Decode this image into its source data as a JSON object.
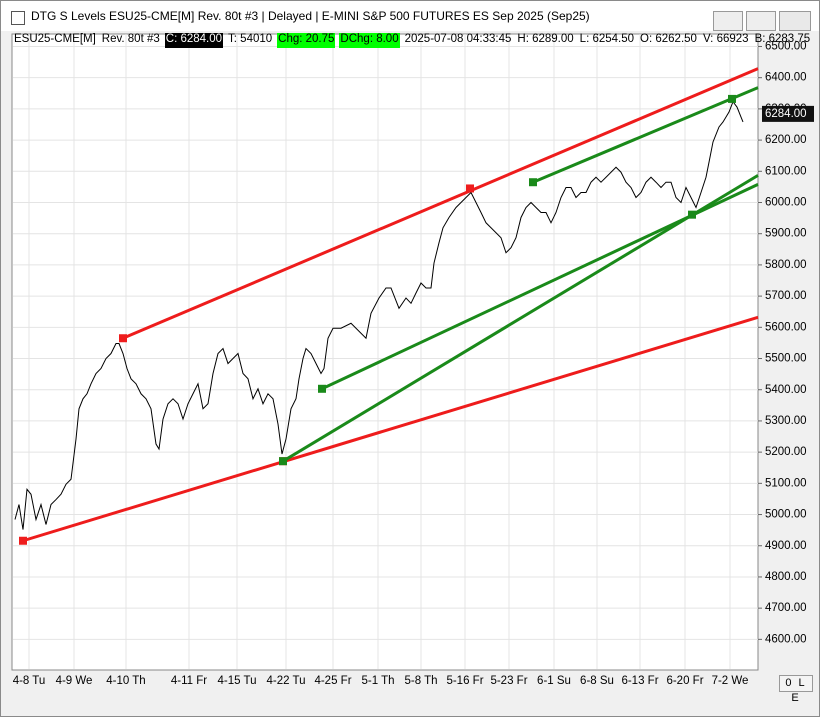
{
  "window_title": "DTG S Levels ESU25-CME[M]  Rev. 80t #3 | Delayed | E-MINI S&P 500 FUTURES ES Sep 2025 (Sep25)",
  "info": [
    {
      "text": "ESU25-CME[M]"
    },
    {
      "text": "Rev. 80t #3"
    },
    {
      "text": "C: 6284.00",
      "background": "#000000",
      "color": "#ffffff"
    },
    {
      "text": "T: 54010"
    },
    {
      "text": "Chg: 20.75",
      "background": "#00ff00",
      "color": "#000000"
    },
    {
      "text": "DChg: 8.00",
      "background": "#00ff00",
      "color": "#000000"
    },
    {
      "text": "2025-07-08 04:33:45"
    },
    {
      "text": "H: 6289.00"
    },
    {
      "text": "L: 6254.50"
    },
    {
      "text": "O: 6262.50"
    },
    {
      "text": "V: 66923"
    },
    {
      "text": "B: 6283.75"
    }
  ],
  "corner_button": "0 L E",
  "chart_data": {
    "type": "line",
    "x": [
      2,
      6,
      10,
      14,
      18,
      23,
      28,
      33,
      38,
      43,
      48,
      53,
      58,
      63,
      66,
      70,
      74,
      78,
      83,
      88,
      93,
      98,
      103,
      106,
      110,
      114,
      118,
      123,
      128,
      133,
      138,
      143,
      146,
      150,
      155,
      160,
      165,
      170,
      175,
      180,
      185,
      190,
      195,
      200,
      205,
      210,
      215,
      220,
      225,
      230,
      235,
      240,
      245,
      250,
      255,
      260,
      265,
      269,
      273,
      278,
      283,
      286,
      290,
      293,
      298,
      303,
      308,
      311,
      315,
      320,
      328,
      338,
      348,
      353,
      358,
      366,
      373,
      378,
      386,
      393,
      398,
      403,
      408,
      413,
      418,
      421,
      426,
      430,
      436,
      443,
      448,
      453,
      458,
      463,
      468,
      473,
      478,
      483,
      488,
      493,
      498,
      503,
      508,
      513,
      518,
      523,
      528,
      533,
      538,
      543,
      548,
      553,
      558,
      563,
      568,
      573,
      578,
      583,
      588,
      593,
      598,
      603,
      608,
      613,
      618,
      623,
      628,
      633,
      638,
      643,
      648,
      653,
      658,
      663,
      668,
      673,
      678,
      683,
      688,
      693,
      696,
      700,
      706,
      710,
      716,
      720,
      724,
      728,
      730
    ],
    "series": [
      {
        "color": "#000000",
        "values": [
          4984,
          5032,
          4952,
          5081,
          5065,
          4984,
          5032,
          4968,
          5032,
          5048,
          5065,
          5097,
          5113,
          5242,
          5339,
          5371,
          5387,
          5419,
          5452,
          5468,
          5500,
          5516,
          5548,
          5548,
          5516,
          5468,
          5435,
          5419,
          5387,
          5371,
          5339,
          5226,
          5210,
          5306,
          5355,
          5371,
          5355,
          5306,
          5355,
          5387,
          5419,
          5339,
          5355,
          5452,
          5516,
          5532,
          5484,
          5500,
          5516,
          5452,
          5435,
          5371,
          5403,
          5355,
          5387,
          5371,
          5290,
          5194,
          5242,
          5339,
          5371,
          5435,
          5500,
          5532,
          5516,
          5484,
          5452,
          5468,
          5565,
          5597,
          5597,
          5613,
          5581,
          5565,
          5645,
          5694,
          5726,
          5726,
          5661,
          5694,
          5677,
          5710,
          5742,
          5726,
          5726,
          5806,
          5871,
          5919,
          5952,
          5984,
          6000,
          6016,
          6032,
          6000,
          5968,
          5935,
          5919,
          5903,
          5887,
          5839,
          5855,
          5887,
          5952,
          5984,
          6000,
          5984,
          5968,
          5968,
          5935,
          5968,
          6016,
          6048,
          6048,
          6016,
          6032,
          6032,
          6065,
          6081,
          6065,
          6081,
          6097,
          6113,
          6097,
          6065,
          6048,
          6016,
          6032,
          6065,
          6081,
          6065,
          6048,
          6065,
          6065,
          6016,
          6000,
          6048,
          6016,
          5984,
          6032,
          6081,
          6129,
          6194,
          6242,
          6258,
          6290,
          6323,
          6306,
          6274,
          6258
        ]
      }
    ],
    "xlim": [
      0,
      745
    ],
    "xticks": [
      {
        "value": 16,
        "label": "4-8 Tu"
      },
      {
        "value": 61,
        "label": "4-9 We"
      },
      {
        "value": 113,
        "label": "4-10 Th"
      },
      {
        "value": 176,
        "label": "4-11 Fr"
      },
      {
        "value": 224,
        "label": "4-15 Tu"
      },
      {
        "value": 273,
        "label": "4-22 Tu"
      },
      {
        "value": 320,
        "label": "4-25 Fr"
      },
      {
        "value": 365,
        "label": "5-1 Th"
      },
      {
        "value": 408,
        "label": "5-8 Th"
      },
      {
        "value": 452,
        "label": "5-16 Fr"
      },
      {
        "value": 496,
        "label": "5-23 Fr"
      },
      {
        "value": 541,
        "label": "6-1 Su"
      },
      {
        "value": 584,
        "label": "6-8 Su"
      },
      {
        "value": 627,
        "label": "6-13 Fr"
      },
      {
        "value": 672,
        "label": "6-20 Fr"
      },
      {
        "value": 717,
        "label": "7-2 We"
      }
    ],
    "ylim": [
      4505,
      6540
    ],
    "yticks": [
      {
        "value": 4600,
        "label": "4600.00"
      },
      {
        "value": 4700,
        "label": "4700.00"
      },
      {
        "value": 4800,
        "label": "4800.00"
      },
      {
        "value": 4900,
        "label": "4900.00"
      },
      {
        "value": 5000,
        "label": "5000.00"
      },
      {
        "value": 5100,
        "label": "5100.00"
      },
      {
        "value": 5200,
        "label": "5200.00"
      },
      {
        "value": 5300,
        "label": "5300.00"
      },
      {
        "value": 5400,
        "label": "5400.00"
      },
      {
        "value": 5500,
        "label": "5500.00"
      },
      {
        "value": 5600,
        "label": "5600.00"
      },
      {
        "value": 5700,
        "label": "5700.00"
      },
      {
        "value": 5800,
        "label": "5800.00"
      },
      {
        "value": 5900,
        "label": "5900.00"
      },
      {
        "value": 6000,
        "label": "6000.00"
      },
      {
        "value": 6100,
        "label": "6100.00"
      },
      {
        "value": 6200,
        "label": "6200.00"
      },
      {
        "value": 6300,
        "label": "6300.00"
      },
      {
        "value": 6400,
        "label": "6400.00"
      },
      {
        "value": 6500,
        "label": "6500.00"
      }
    ],
    "grid": true,
    "last_price": {
      "value": 6284,
      "label": "6284.00"
    },
    "trend_lines": [
      {
        "color": "#ee1c1c",
        "x": [
          110,
          745
        ],
        "values": [
          5565,
          6429
        ],
        "anchors": {
          "x": [
            110,
            457
          ],
          "values": [
            5565,
            6045
          ]
        }
      },
      {
        "color": "#ee1c1c",
        "x": [
          10,
          745
        ],
        "values": [
          4916,
          5632
        ],
        "anchors": {
          "x": [
            10,
            270
          ],
          "values": [
            4916,
            5171
          ]
        }
      },
      {
        "color": "#1a8a1a",
        "x": [
          270,
          745
        ],
        "values": [
          5171,
          6087
        ],
        "anchors": {
          "x": [
            270,
            679
          ],
          "values": [
            5171,
            5961
          ]
        }
      },
      {
        "color": "#1a8a1a",
        "x": [
          309,
          745
        ],
        "values": [
          5403,
          6058
        ],
        "anchors": {
          "x": [
            309
          ],
          "values": [
            5403
          ]
        }
      },
      {
        "color": "#1a8a1a",
        "x": [
          520,
          745
        ],
        "values": [
          6065,
          6368
        ],
        "anchors": {
          "x": [
            520,
            719
          ],
          "values": [
            6065,
            6332
          ]
        }
      }
    ]
  }
}
